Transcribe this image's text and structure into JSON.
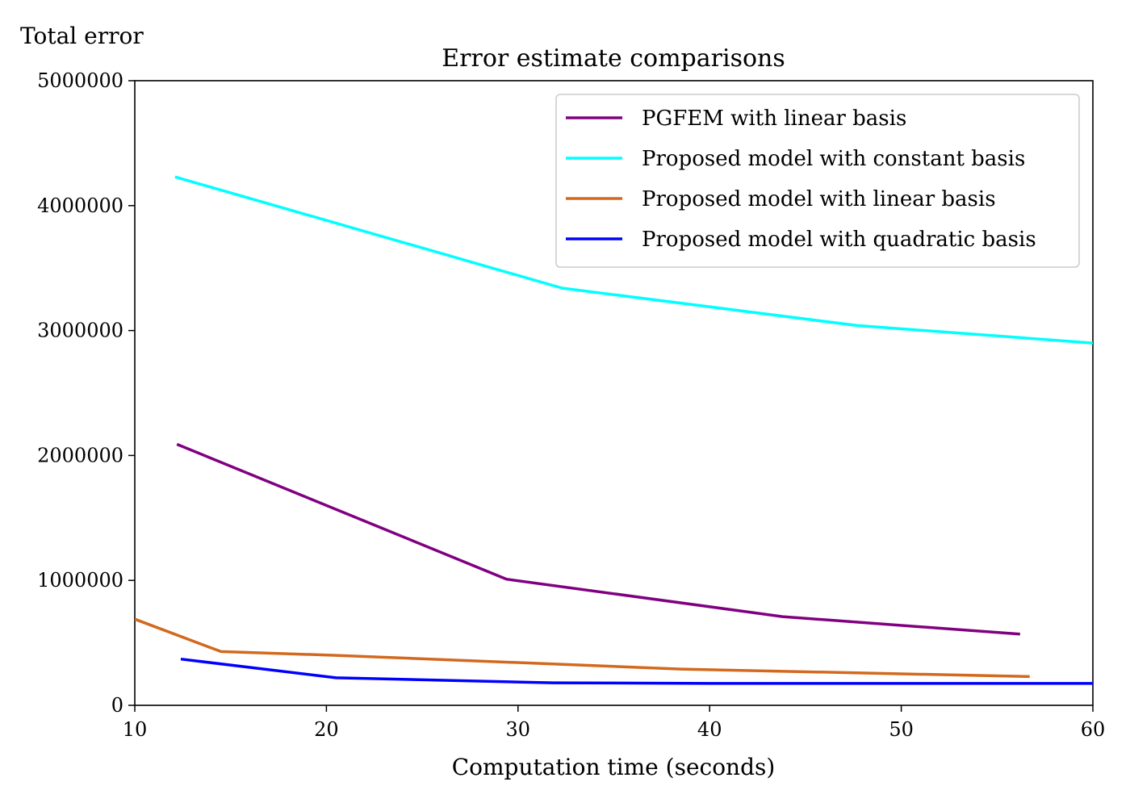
{
  "chart_data": {
    "type": "line",
    "title": "Error estimate comparisons",
    "xlabel": "Computation time (seconds)",
    "ylabel": "Total error",
    "xlim": [
      10,
      60
    ],
    "ylim": [
      0,
      5000000
    ],
    "xticks": [
      10,
      20,
      30,
      40,
      50,
      60
    ],
    "xtick_labels": [
      "10",
      "20",
      "30",
      "40",
      "50",
      "60"
    ],
    "yticks": [
      0,
      1000000,
      2000000,
      3000000,
      4000000,
      5000000
    ],
    "ytick_labels": [
      "0",
      "1000000",
      "2000000",
      "3000000",
      "4000000",
      "5000000"
    ],
    "grid": false,
    "legend_position": "top-right",
    "series": [
      {
        "name": "PGFEM with linear basis",
        "color": "#800080",
        "x": [
          12.2,
          29.4,
          43.8,
          56.2
        ],
        "y": [
          2090000,
          1010000,
          710000,
          570000
        ]
      },
      {
        "name": "Proposed model with constant basis",
        "color": "#00ffff",
        "x": [
          12.1,
          32.3,
          47.7,
          60.0
        ],
        "y": [
          4230000,
          3340000,
          3040000,
          2900000
        ]
      },
      {
        "name": "Proposed model with linear basis",
        "color": "#d2691e",
        "x": [
          10.0,
          14.5,
          20.5,
          38.5,
          56.7
        ],
        "y": [
          690000,
          430000,
          400000,
          290000,
          230000
        ]
      },
      {
        "name": "Proposed model with quadratic basis",
        "color": "#0000ff",
        "x": [
          12.4,
          20.5,
          31.8,
          40.0,
          60.0
        ],
        "y": [
          370000,
          220000,
          180000,
          175000,
          175000
        ]
      }
    ]
  }
}
